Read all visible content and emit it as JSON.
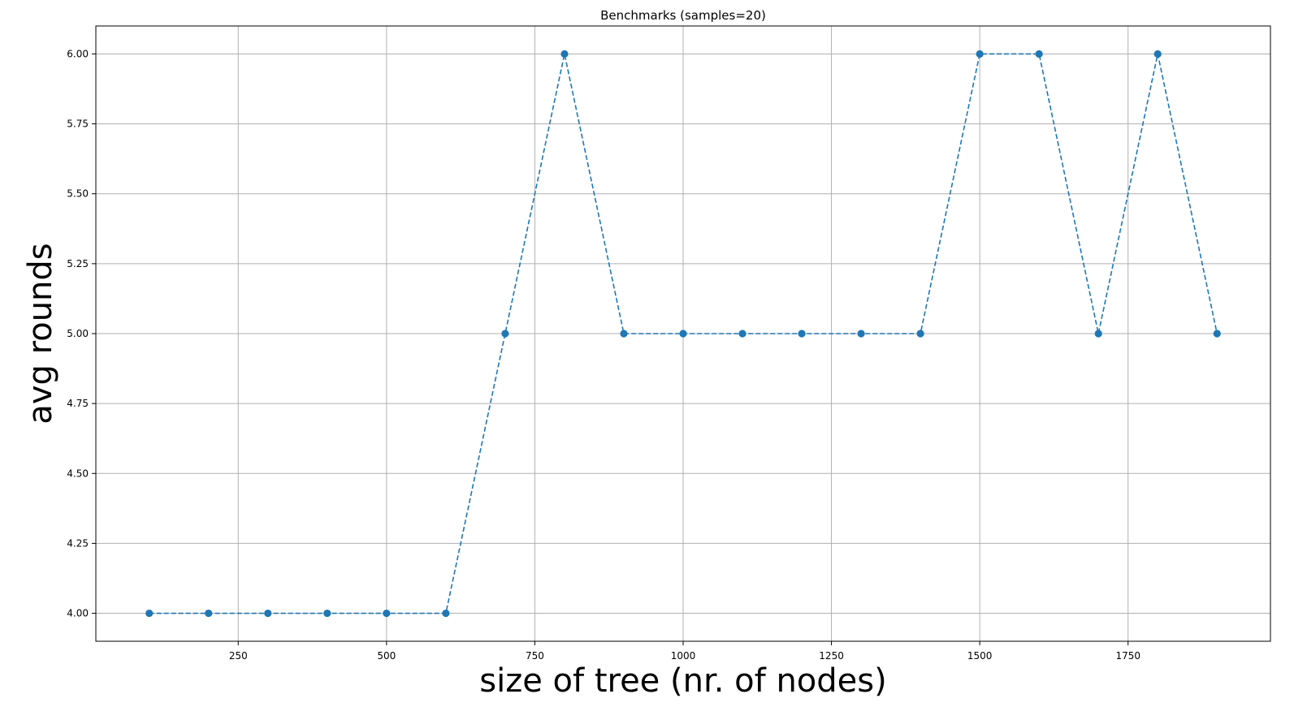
{
  "chart_data": {
    "type": "line",
    "title": "Benchmarks (samples=20)",
    "xlabel": "size of tree (nr. of nodes)",
    "ylabel": "avg rounds",
    "x": [
      100,
      200,
      300,
      400,
      500,
      600,
      700,
      800,
      900,
      1000,
      1100,
      1200,
      1300,
      1400,
      1500,
      1600,
      1700,
      1800,
      1900
    ],
    "series": [
      {
        "values": [
          4,
          4,
          4,
          4,
          4,
          4,
          5,
          6,
          5,
          5,
          5,
          5,
          5,
          5,
          6,
          6,
          5,
          6,
          5
        ],
        "color": "#1f77b4",
        "line_style": "dashed",
        "marker": "circle"
      }
    ],
    "xlim": [
      10,
      1990
    ],
    "ylim": [
      3.9,
      6.1
    ],
    "x_ticks": [
      250,
      500,
      750,
      1000,
      1250,
      1500,
      1750
    ],
    "x_tick_labels": [
      "250",
      "500",
      "750",
      "1000",
      "1250",
      "1500",
      "1750"
    ],
    "y_ticks": [
      4.0,
      4.25,
      4.5,
      4.75,
      5.0,
      5.25,
      5.5,
      5.75,
      6.0
    ],
    "y_tick_labels": [
      "4.00",
      "4.25",
      "4.50",
      "4.75",
      "5.00",
      "5.25",
      "5.50",
      "5.75",
      "6.00"
    ],
    "grid": true,
    "legend": "none",
    "grid_color": "#b0b0b0",
    "axis_color": "#000000"
  }
}
